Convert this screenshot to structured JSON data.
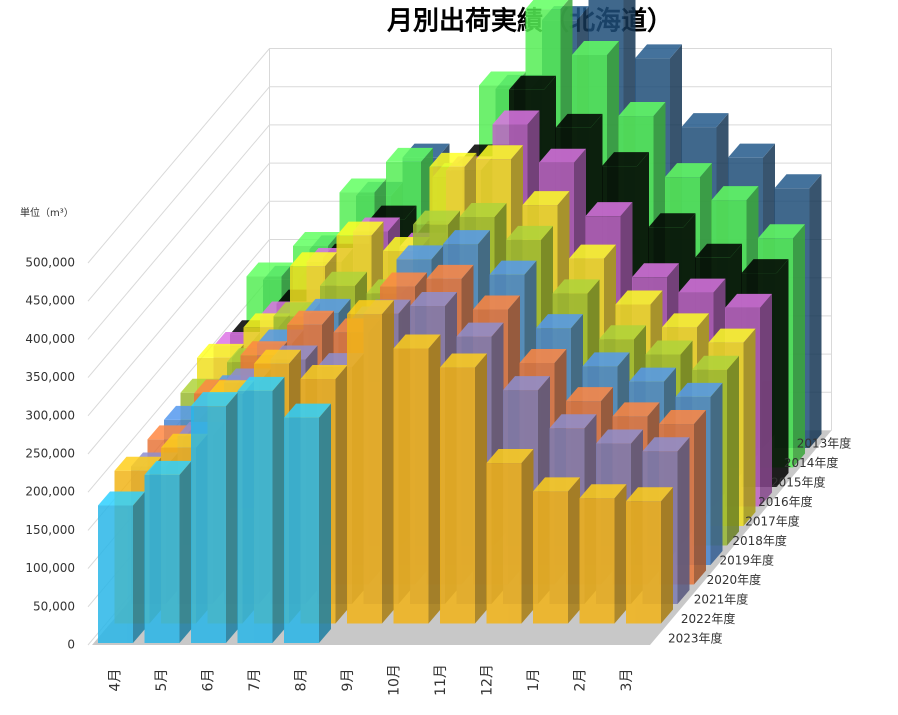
{
  "chart_data": {
    "type": "bar3d",
    "title": "月別出荷実績（北海道）",
    "y_axis_label": "単位（m³）",
    "categories": [
      "4月",
      "5月",
      "6月",
      "7月",
      "8月",
      "9月",
      "10月",
      "11月",
      "12月",
      "1月",
      "2月",
      "3月"
    ],
    "series": [
      {
        "name": "2013年度",
        "color": "#1f4e79",
        "values": [
          220000,
          260000,
          330000,
          380000,
          360000,
          470000,
          560000,
          600000,
          510000,
          420000,
          380000,
          340000
        ]
      },
      {
        "name": "2014年度",
        "color": "#55ee55",
        "values": [
          250000,
          290000,
          360000,
          400000,
          380000,
          500000,
          600000,
          540000,
          460000,
          380000,
          350000,
          300000
        ]
      },
      {
        "name": "2015年度",
        "color": "#000000",
        "values": [
          200000,
          240000,
          300000,
          350000,
          330000,
          430000,
          520000,
          470000,
          420000,
          340000,
          300000,
          280000
        ]
      },
      {
        "name": "2016年度",
        "color": "#c066c8",
        "values": [
          210000,
          250000,
          320000,
          360000,
          340000,
          440000,
          500000,
          450000,
          380000,
          300000,
          280000,
          260000
        ]
      },
      {
        "name": "2017年度",
        "color": "#f0e020",
        "values": [
          220000,
          260000,
          340000,
          380000,
          360000,
          470000,
          480000,
          420000,
          350000,
          290000,
          260000,
          240000
        ]
      },
      {
        "name": "2018年度",
        "color": "#99b833",
        "values": [
          200000,
          240000,
          300000,
          340000,
          330000,
          420000,
          430000,
          400000,
          330000,
          270000,
          250000,
          230000
        ]
      },
      {
        "name": "2019年度",
        "color": "#4a86d0",
        "values": [
          190000,
          230000,
          290000,
          330000,
          320000,
          400000,
          420000,
          380000,
          310000,
          260000,
          240000,
          220000
        ]
      },
      {
        "name": "2020年度",
        "color": "#e8763a",
        "values": [
          190000,
          250000,
          300000,
          340000,
          330000,
          390000,
          400000,
          360000,
          290000,
          240000,
          220000,
          210000
        ]
      },
      {
        "name": "2021年度",
        "color": "#7c7cb4",
        "values": [
          180000,
          220000,
          290000,
          320000,
          310000,
          380000,
          390000,
          350000,
          280000,
          230000,
          210000,
          200000
        ]
      },
      {
        "name": "2022年度",
        "color": "#f2b418",
        "values": [
          200000,
          230000,
          300000,
          340000,
          320000,
          405000,
          360000,
          335000,
          210000,
          173000,
          164000,
          160000
        ]
      },
      {
        "name": "2023年度",
        "color": "#29b6e8",
        "values": [
          180000,
          220000,
          310000,
          330000,
          295000,
          null,
          null,
          null,
          null,
          null,
          null,
          null
        ]
      }
    ],
    "ylim": [
      0,
      500000
    ],
    "yticks": [
      0,
      {
        "value": 50000,
        "label": "50,000"
      },
      {
        "value": 100000,
        "label": "100,000"
      },
      {
        "value": 150000,
        "label": "150,000"
      },
      {
        "value": 200000,
        "label": "200,000"
      },
      {
        "value": 250000,
        "label": "250,000"
      },
      {
        "value": 300000,
        "label": "300,000"
      },
      {
        "value": 350000,
        "label": "350,000"
      },
      {
        "value": 400000,
        "label": "400,000"
      },
      {
        "value": 450000,
        "label": "450,000"
      },
      {
        "value": 500000,
        "label": "500,000"
      }
    ],
    "grid": true
  }
}
